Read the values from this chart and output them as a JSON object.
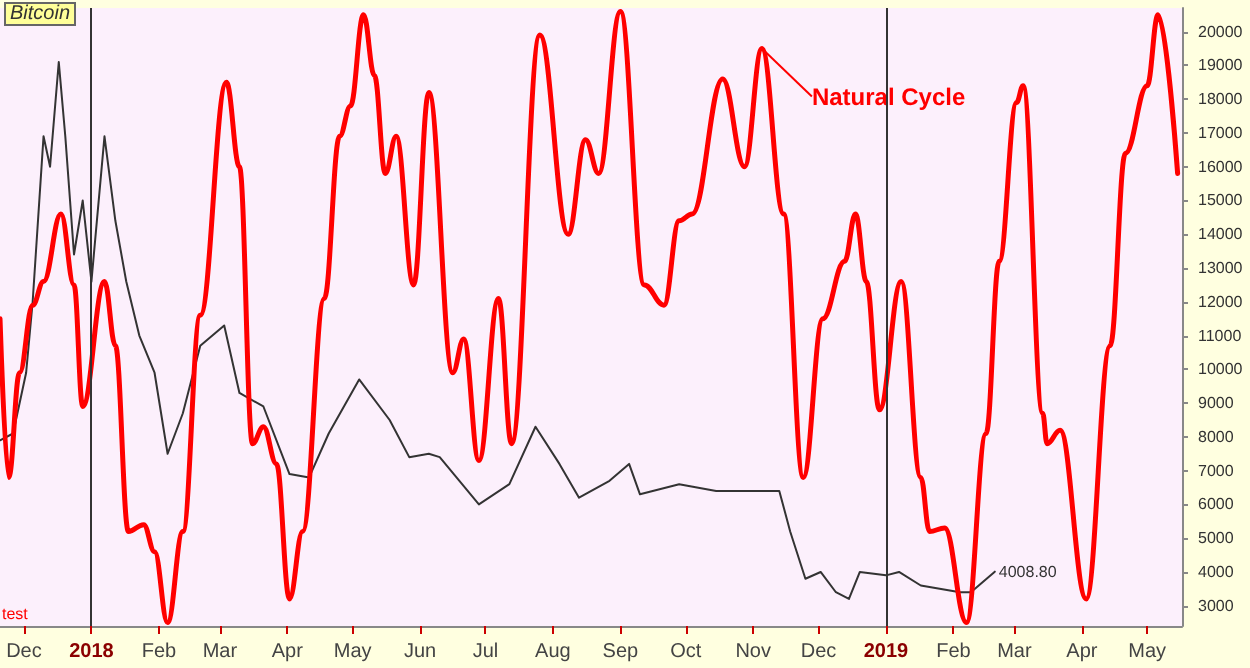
{
  "chart_data": {
    "type": "line",
    "title": "Bitcoin",
    "xlim": [
      "2017-11-20",
      "2019-05-17"
    ],
    "xticks": [
      {
        "value": "2017-12-01",
        "label": "Dec"
      },
      {
        "value": "2018-01-01",
        "label": "2018"
      },
      {
        "value": "2018-02-01",
        "label": "Feb"
      },
      {
        "value": "2018-03-01",
        "label": "Mar"
      },
      {
        "value": "2018-04-01",
        "label": "Apr"
      },
      {
        "value": "2018-05-01",
        "label": "May"
      },
      {
        "value": "2018-06-01",
        "label": "Jun"
      },
      {
        "value": "2018-07-01",
        "label": "Jul"
      },
      {
        "value": "2018-08-01",
        "label": "Aug"
      },
      {
        "value": "2018-09-01",
        "label": "Sep"
      },
      {
        "value": "2018-10-01",
        "label": "Oct"
      },
      {
        "value": "2018-11-01",
        "label": "Nov"
      },
      {
        "value": "2018-12-01",
        "label": "Dec"
      },
      {
        "value": "2019-01-01",
        "label": "2019"
      },
      {
        "value": "2019-02-01",
        "label": "Feb"
      },
      {
        "value": "2019-03-01",
        "label": "Mar"
      },
      {
        "value": "2019-04-01",
        "label": "Apr"
      },
      {
        "value": "2019-05-01",
        "label": "May"
      }
    ],
    "ylim": [
      2400,
      20700
    ],
    "yticks": [
      3000,
      4000,
      5000,
      6000,
      7000,
      8000,
      9000,
      10000,
      11000,
      12000,
      13000,
      14000,
      15000,
      16000,
      17000,
      18000,
      19000,
      20000
    ],
    "grid": false,
    "legend": false,
    "marker": "none",
    "line_style": "solid",
    "series": [
      {
        "color": "#333333",
        "x": [
          "2017-11-20",
          "2017-11-26",
          "2017-12-02",
          "2017-12-05",
          "2017-12-10",
          "2017-12-13",
          "2017-12-17",
          "2017-12-20",
          "2017-12-24",
          "2017-12-28",
          "2018-01-01",
          "2018-01-07",
          "2018-01-12",
          "2018-01-17",
          "2018-01-23",
          "2018-01-30",
          "2018-02-05",
          "2018-02-12",
          "2018-02-20",
          "2018-03-03",
          "2018-03-10",
          "2018-03-21",
          "2018-04-02",
          "2018-04-11",
          "2018-04-20",
          "2018-05-04",
          "2018-05-18",
          "2018-05-27",
          "2018-06-05",
          "2018-06-10",
          "2018-06-28",
          "2018-07-12",
          "2018-07-24",
          "2018-08-04",
          "2018-08-13",
          "2018-08-27",
          "2018-09-05",
          "2018-09-10",
          "2018-09-28",
          "2018-10-15",
          "2018-10-26",
          "2018-11-13",
          "2018-11-18",
          "2018-11-25",
          "2018-12-02",
          "2018-12-09",
          "2018-12-15",
          "2018-12-20",
          "2019-01-01",
          "2019-01-07",
          "2019-01-17",
          "2019-02-04",
          "2019-02-09",
          "2019-02-20"
        ],
        "values": [
          7900,
          8100,
          9900,
          12000,
          16900,
          16000,
          19100,
          16900,
          13400,
          15000,
          12600,
          16900,
          14400,
          12600,
          11000,
          9900,
          7500,
          8700,
          10700,
          11300,
          9300,
          8900,
          6900,
          6800,
          8100,
          9700,
          8500,
          7400,
          7500,
          7400,
          6000,
          6600,
          8300,
          7200,
          6200,
          6700,
          7200,
          6300,
          6600,
          6400,
          6400,
          6400,
          5200,
          3800,
          4000,
          3400,
          3200,
          4000,
          3900,
          4000,
          3600,
          3400,
          3400,
          4008.8
        ]
      },
      {
        "name": "Natural Cycle",
        "color": "#ff0000",
        "x": [
          "2017-11-20",
          "2017-11-24",
          "2017-11-29",
          "2017-12-05",
          "2017-12-10",
          "2017-12-18",
          "2017-12-24",
          "2017-12-28",
          "2018-01-07",
          "2018-01-12",
          "2018-01-18",
          "2018-01-25",
          "2018-01-30",
          "2018-02-05",
          "2018-02-12",
          "2018-02-20",
          "2018-03-04",
          "2018-03-10",
          "2018-03-16",
          "2018-03-21",
          "2018-03-27",
          "2018-04-02",
          "2018-04-08",
          "2018-04-18",
          "2018-04-25",
          "2018-04-30",
          "2018-05-06",
          "2018-05-11",
          "2018-05-16",
          "2018-05-21",
          "2018-05-29",
          "2018-06-05",
          "2018-06-16",
          "2018-06-21",
          "2018-06-28",
          "2018-07-07",
          "2018-07-13",
          "2018-07-26",
          "2018-08-08",
          "2018-08-16",
          "2018-08-22",
          "2018-09-01",
          "2018-09-12",
          "2018-09-21",
          "2018-09-28",
          "2018-10-04",
          "2018-10-18",
          "2018-10-28",
          "2018-11-05",
          "2018-11-15",
          "2018-11-24",
          "2018-12-03",
          "2018-12-13",
          "2018-12-18",
          "2018-12-23",
          "2018-12-29",
          "2019-01-08",
          "2019-01-17",
          "2019-01-21",
          "2019-01-28",
          "2019-02-07",
          "2019-02-16",
          "2019-02-22",
          "2019-03-02",
          "2019-03-05",
          "2019-03-14",
          "2019-03-16",
          "2019-03-22",
          "2019-04-03",
          "2019-04-14",
          "2019-04-21",
          "2019-05-01",
          "2019-05-06",
          "2019-05-15"
        ],
        "values": [
          11500,
          6800,
          9900,
          11900,
          12600,
          14600,
          12500,
          8900,
          12600,
          10700,
          5200,
          5400,
          4600,
          2500,
          5200,
          11600,
          18500,
          16000,
          7800,
          8300,
          7200,
          3200,
          5200,
          12100,
          16900,
          17800,
          20500,
          18700,
          15800,
          16900,
          12500,
          18200,
          9900,
          10900,
          7300,
          12100,
          7800,
          19900,
          14000,
          16800,
          15800,
          20600,
          12500,
          11900,
          14400,
          14600,
          18600,
          16000,
          19500,
          14600,
          6800,
          11500,
          13200,
          14600,
          12600,
          8800,
          12600,
          6800,
          5200,
          5300,
          2500,
          8100,
          13200,
          17900,
          18400,
          8700,
          7800,
          8200,
          3200,
          10700,
          16400,
          18400,
          20500,
          15800
        ]
      }
    ],
    "ref_lines": [
      {
        "axis": "x",
        "value": "2018-01-01",
        "color": "#333333"
      },
      {
        "axis": "x",
        "value": "2019-01-01",
        "color": "#333333"
      }
    ],
    "annotations": [
      {
        "text": "4008.80",
        "x": "2019-02-20",
        "y": 4008.8
      },
      "test"
    ]
  }
}
